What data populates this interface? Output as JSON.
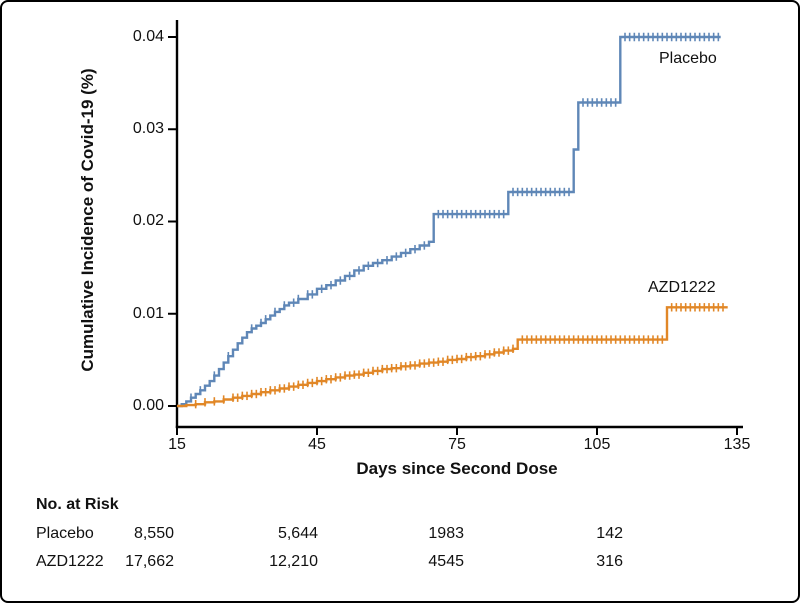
{
  "figure": {
    "y_axis_label": "Cumulative Incidence of Covid-19 (%)",
    "x_axis_label": "Days since Second Dose",
    "y_tick_labels": [
      "0.04",
      "0.03",
      "0.02",
      "0.01",
      "0.00"
    ],
    "x_tick_labels": [
      "15",
      "45",
      "75",
      "105",
      "135"
    ]
  },
  "risk_table": {
    "title": "No. at Risk",
    "rows": [
      {
        "label": "Placebo",
        "values": [
          "8,550",
          "5,644",
          "1983",
          "142"
        ]
      },
      {
        "label": "AZD1222",
        "values": [
          "17,662",
          "12,210",
          "4545",
          "316"
        ]
      }
    ]
  },
  "chart_data": {
    "type": "line",
    "subtype": "step-kaplan-meier-cumulative-incidence",
    "title": "",
    "xlabel": "Days since Second Dose",
    "ylabel": "Cumulative Incidence of Covid-19 (%)",
    "xlim": [
      15,
      135
    ],
    "ylim": [
      0,
      0.04
    ],
    "x_ticks": [
      15,
      45,
      75,
      105,
      135
    ],
    "y_ticks": [
      0,
      0.01,
      0.02,
      0.03,
      0.04
    ],
    "grid": false,
    "legend": "inline-labels-right-of-curves",
    "axis_color": "#000000",
    "series": [
      {
        "name": "Placebo",
        "color": "#5F87B7",
        "points": [
          [
            15,
            0
          ],
          [
            16,
            0.0002
          ],
          [
            17,
            0.0005
          ],
          [
            18,
            0.0009
          ],
          [
            19,
            0.0013
          ],
          [
            20,
            0.0017
          ],
          [
            21,
            0.0022
          ],
          [
            22,
            0.0027
          ],
          [
            23,
            0.0033
          ],
          [
            24,
            0.004
          ],
          [
            25,
            0.0047
          ],
          [
            26,
            0.0054
          ],
          [
            27,
            0.0061
          ],
          [
            28,
            0.0068
          ],
          [
            29,
            0.0074
          ],
          [
            30,
            0.008
          ],
          [
            31,
            0.0084
          ],
          [
            32,
            0.0087
          ],
          [
            33,
            0.009
          ],
          [
            34,
            0.0094
          ],
          [
            35,
            0.0098
          ],
          [
            36,
            0.0102
          ],
          [
            37,
            0.0105
          ],
          [
            38,
            0.0109
          ],
          [
            39,
            0.0112
          ],
          [
            41,
            0.0116
          ],
          [
            43,
            0.0121
          ],
          [
            45,
            0.0127
          ],
          [
            47,
            0.0131
          ],
          [
            49,
            0.0136
          ],
          [
            51,
            0.0141
          ],
          [
            53,
            0.0147
          ],
          [
            55,
            0.0152
          ],
          [
            57,
            0.0155
          ],
          [
            59,
            0.0158
          ],
          [
            61,
            0.0162
          ],
          [
            63,
            0.0166
          ],
          [
            65,
            0.017
          ],
          [
            67,
            0.0174
          ],
          [
            69,
            0.0178
          ],
          [
            70,
            0.0208
          ],
          [
            86,
            0.0232
          ],
          [
            100,
            0.0278
          ],
          [
            101,
            0.0329
          ],
          [
            110,
            0.04
          ],
          [
            131.5,
            0.04
          ]
        ],
        "censor_days": [
          18,
          20,
          23,
          26,
          31,
          33,
          34,
          36,
          38,
          40,
          41,
          43,
          44,
          46,
          48,
          50,
          52,
          54,
          56,
          58,
          60,
          62,
          64,
          66,
          68,
          71,
          72,
          73,
          74,
          75,
          76,
          77,
          78,
          79,
          80,
          81,
          82,
          83,
          84,
          85,
          87,
          88,
          89,
          90,
          91,
          92,
          93,
          94,
          95,
          96,
          97,
          98,
          99,
          102,
          103,
          104,
          105,
          106,
          107,
          108,
          109,
          111,
          112,
          113,
          114,
          115,
          116,
          117,
          118,
          119,
          120,
          121,
          122,
          123,
          124,
          125,
          126,
          127,
          128,
          129,
          130,
          131
        ]
      },
      {
        "name": "AZD1222",
        "color": "#E18727",
        "points": [
          [
            15,
            0
          ],
          [
            17,
            0.0001
          ],
          [
            19,
            0.0002
          ],
          [
            21,
            0.0004
          ],
          [
            23,
            0.0005
          ],
          [
            25,
            0.0007
          ],
          [
            27,
            0.0009
          ],
          [
            29,
            0.0011
          ],
          [
            31,
            0.0013
          ],
          [
            33,
            0.0015
          ],
          [
            35,
            0.0017
          ],
          [
            37,
            0.0019
          ],
          [
            39,
            0.0021
          ],
          [
            41,
            0.0023
          ],
          [
            43,
            0.0025
          ],
          [
            45,
            0.0027
          ],
          [
            47,
            0.0029
          ],
          [
            49,
            0.0031
          ],
          [
            51,
            0.0033
          ],
          [
            53,
            0.0034
          ],
          [
            55,
            0.0036
          ],
          [
            57,
            0.0038
          ],
          [
            59,
            0.004
          ],
          [
            61,
            0.0041
          ],
          [
            63,
            0.0043
          ],
          [
            65,
            0.0044
          ],
          [
            67,
            0.0046
          ],
          [
            69,
            0.0047
          ],
          [
            71,
            0.0048
          ],
          [
            73,
            0.005
          ],
          [
            75,
            0.0051
          ],
          [
            77,
            0.0053
          ],
          [
            79,
            0.0054
          ],
          [
            81,
            0.0056
          ],
          [
            83,
            0.0058
          ],
          [
            85,
            0.006
          ],
          [
            87,
            0.0062
          ],
          [
            88,
            0.0072
          ],
          [
            120,
            0.0107
          ],
          [
            133,
            0.0107
          ]
        ],
        "censor_days": [
          19,
          21,
          23,
          25,
          27,
          28,
          29,
          30,
          31,
          32,
          33,
          34,
          35,
          36,
          37,
          38,
          39,
          40,
          41,
          42,
          43,
          44,
          45,
          46,
          47,
          48,
          49,
          50,
          51,
          52,
          53,
          54,
          55,
          56,
          57,
          58,
          59,
          60,
          61,
          62,
          63,
          64,
          65,
          66,
          67,
          68,
          69,
          70,
          71,
          72,
          73,
          74,
          75,
          76,
          77,
          78,
          79,
          80,
          81,
          82,
          83,
          84,
          85,
          86,
          87,
          89,
          90,
          91,
          92,
          93,
          94,
          95,
          96,
          97,
          98,
          99,
          100,
          101,
          102,
          103,
          104,
          105,
          106,
          107,
          108,
          109,
          110,
          111,
          112,
          113,
          114,
          115,
          116,
          117,
          118,
          119,
          121,
          122,
          123,
          124,
          125,
          126,
          127,
          128,
          129,
          130,
          131,
          132
        ]
      }
    ]
  }
}
